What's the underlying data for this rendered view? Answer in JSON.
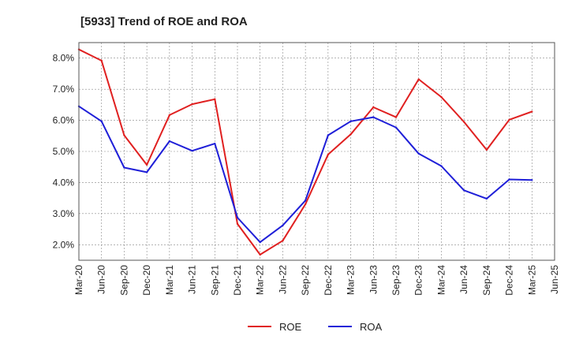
{
  "chart_data": {
    "type": "line",
    "title": "[5933]  Trend of ROE and ROA",
    "xlabel": "",
    "ylabel": "",
    "ylim": [
      1.5,
      8.5
    ],
    "grid": true,
    "legend_position": "bottom-center",
    "categories": [
      "Mar-20",
      "Jun-20",
      "Sep-20",
      "Dec-20",
      "Mar-21",
      "Jun-21",
      "Sep-21",
      "Dec-21",
      "Mar-22",
      "Jun-22",
      "Sep-22",
      "Dec-22",
      "Mar-23",
      "Jun-23",
      "Sep-23",
      "Dec-23",
      "Mar-24",
      "Jun-24",
      "Sep-24",
      "Dec-24",
      "Mar-25",
      "Jun-25"
    ],
    "y_ticks": [
      "2.0%",
      "3.0%",
      "4.0%",
      "5.0%",
      "6.0%",
      "7.0%",
      "8.0%"
    ],
    "y_tick_values": [
      2.0,
      3.0,
      4.0,
      5.0,
      6.0,
      7.0,
      8.0
    ],
    "series": [
      {
        "name": "ROE",
        "color": "#e02020",
        "values": [
          8.28,
          7.92,
          5.52,
          4.57,
          6.17,
          6.52,
          6.68,
          2.67,
          1.68,
          2.13,
          3.3,
          4.9,
          5.55,
          6.42,
          6.1,
          7.32,
          6.75,
          5.95,
          5.05,
          6.02,
          6.28,
          null
        ]
      },
      {
        "name": "ROA",
        "color": "#1f1fd8",
        "values": [
          6.45,
          5.97,
          4.48,
          4.33,
          5.33,
          5.02,
          5.25,
          2.87,
          2.08,
          2.62,
          3.42,
          5.52,
          5.97,
          6.1,
          5.77,
          4.93,
          4.53,
          3.75,
          3.48,
          4.1,
          4.08,
          null
        ]
      }
    ]
  }
}
